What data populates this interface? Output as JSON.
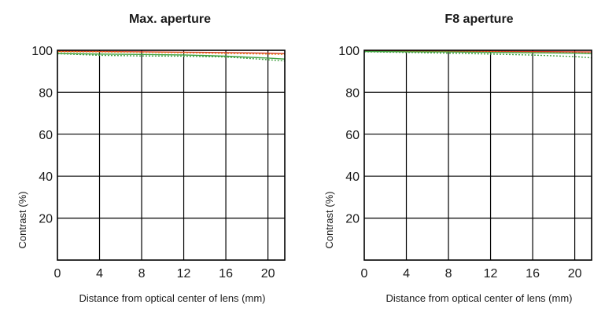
{
  "chart_data": [
    {
      "type": "line",
      "title": "Max. aperture",
      "xlabel": "Distance from optical center of lens (mm)",
      "ylabel": "Contrast (%)",
      "xlim": [
        0,
        21.6
      ],
      "ylim": [
        0,
        100
      ],
      "xticks": [
        0,
        4,
        8,
        12,
        16,
        20
      ],
      "yticks": [
        "20",
        "40",
        "60",
        "80",
        "100"
      ],
      "grid": true,
      "series": [
        {
          "color": "#d03020",
          "dash": "solid",
          "x": [
            0,
            4,
            8,
            12,
            16,
            20,
            21.6
          ],
          "y": [
            99.5,
            99.4,
            99.3,
            99.1,
            98.9,
            98.6,
            98.4
          ]
        },
        {
          "color": "#e89020",
          "dash": "dotted",
          "x": [
            0,
            4,
            8,
            12,
            16,
            20,
            21.6
          ],
          "y": [
            99.3,
            99.2,
            99.0,
            98.8,
            98.5,
            98.2,
            98.0
          ]
        },
        {
          "color": "#40a040",
          "dash": "solid",
          "x": [
            0,
            4,
            8,
            12,
            16,
            20,
            21.6
          ],
          "y": [
            98.5,
            98.2,
            98.0,
            97.8,
            97.2,
            96.3,
            95.8
          ]
        },
        {
          "color": "#40a040",
          "dash": "dotted",
          "x": [
            0,
            4,
            8,
            12,
            16,
            20,
            21.6
          ],
          "y": [
            98.4,
            97.6,
            97.3,
            97.2,
            96.8,
            95.5,
            94.9
          ]
        }
      ]
    },
    {
      "type": "line",
      "title": "F8 aperture",
      "xlabel": "Distance from optical center of lens (mm)",
      "ylabel": "Contrast (%)",
      "xlim": [
        0,
        21.6
      ],
      "ylim": [
        0,
        100
      ],
      "xticks": [
        0,
        4,
        8,
        12,
        16,
        20
      ],
      "yticks": [
        "20",
        "40",
        "60",
        "80",
        "100"
      ],
      "grid": true,
      "series": [
        {
          "color": "#d03020",
          "dash": "solid",
          "x": [
            0,
            4,
            8,
            12,
            16,
            20,
            21.6
          ],
          "y": [
            99.6,
            99.6,
            99.5,
            99.5,
            99.4,
            99.3,
            99.2
          ]
        },
        {
          "color": "#e89020",
          "dash": "dotted",
          "x": [
            0,
            4,
            8,
            12,
            16,
            20,
            21.6
          ],
          "y": [
            99.5,
            99.4,
            99.3,
            99.2,
            99.0,
            98.8,
            98.6
          ]
        },
        {
          "color": "#40a040",
          "dash": "solid",
          "x": [
            0,
            4,
            8,
            12,
            16,
            20,
            21.6
          ],
          "y": [
            99.4,
            99.3,
            99.2,
            99.0,
            98.8,
            98.6,
            98.4
          ]
        },
        {
          "color": "#40a040",
          "dash": "dotted",
          "x": [
            0,
            4,
            8,
            12,
            16,
            20,
            21.6
          ],
          "y": [
            99.3,
            99.0,
            98.6,
            98.2,
            97.7,
            97.0,
            96.4
          ]
        }
      ]
    }
  ]
}
